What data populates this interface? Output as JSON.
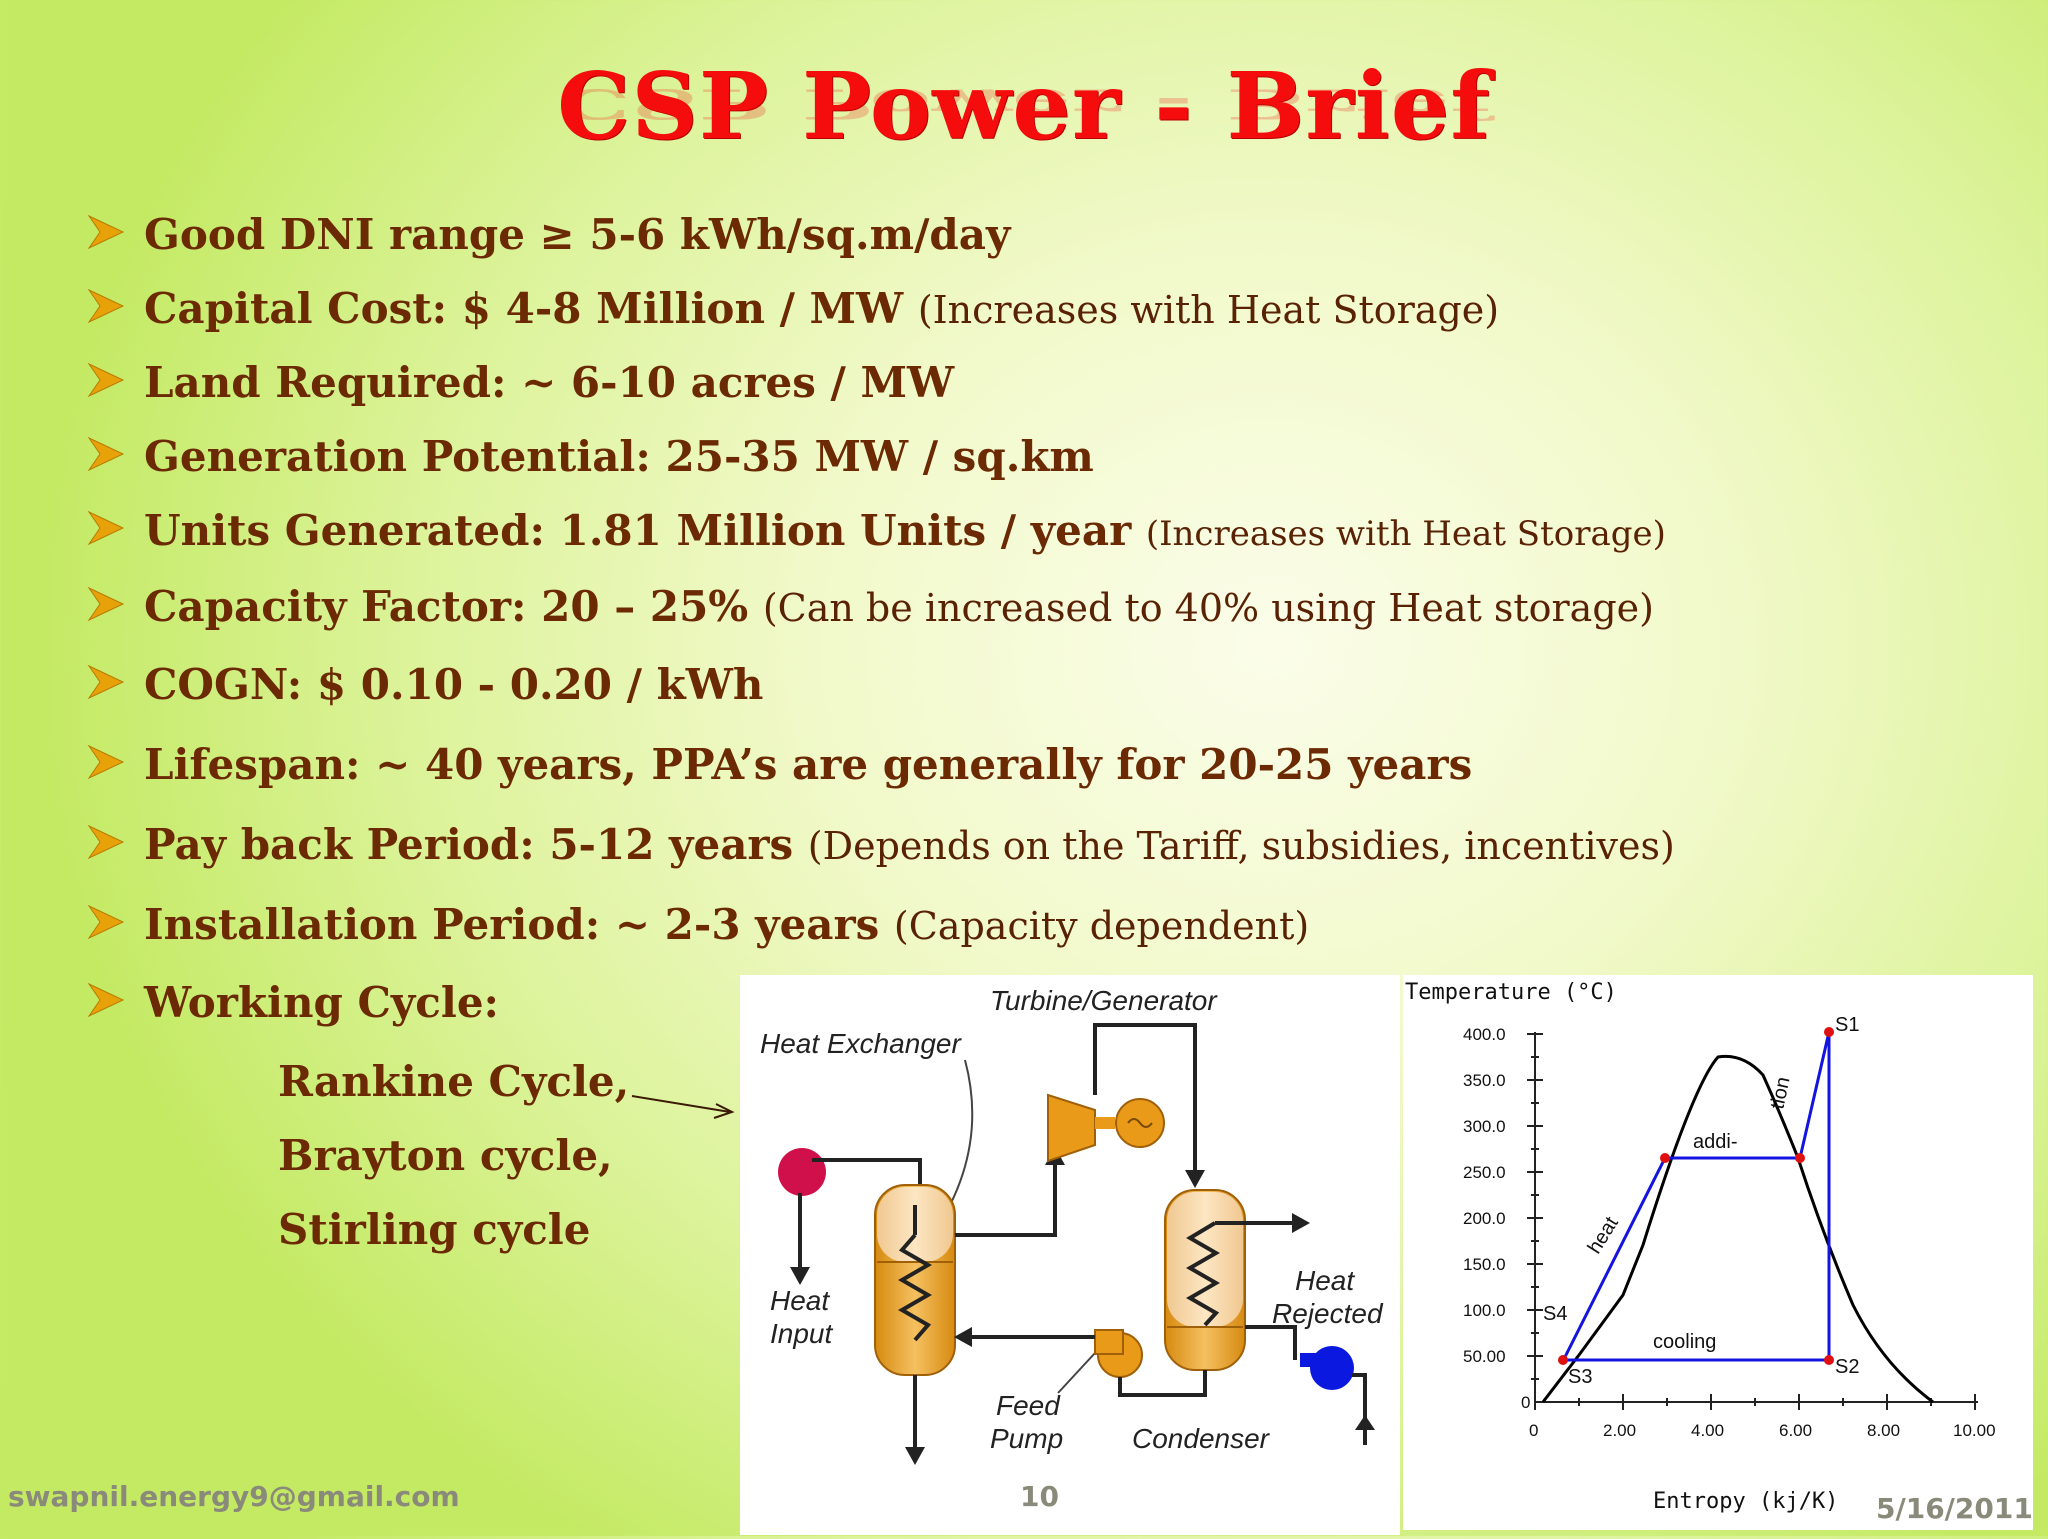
{
  "slide": {
    "title": "CSP Power - Brief",
    "bullets": [
      {
        "bold": "Good DNI range ≥ 5-6 kWh/sq.m/day",
        "note": ""
      },
      {
        "bold": "Capital Cost: $ 4-8 Million / MW ",
        "note": "(Increases with Heat Storage)"
      },
      {
        "bold": "Land Required: ~ 6-10 acres / MW",
        "note": ""
      },
      {
        "bold": "Generation Potential: 25-35 MW / sq.km",
        "note": ""
      },
      {
        "bold": "Units Generated: 1.81 Million Units / year ",
        "note": "(Increases with Heat Storage)"
      },
      {
        "bold": "Capacity Factor: 20 – 25% ",
        "note": "(Can be increased to 40% using Heat storage)"
      },
      {
        "bold": "COGN: $ 0.10 - 0.20 / kWh",
        "note": ""
      },
      {
        "bold": "Lifespan: ~ 40 years, PPA’s are generally for 20-25 years",
        "note": ""
      },
      {
        "bold": "Pay back Period: 5-12 years ",
        "note": "(Depends on the Tariff, subsidies, incentives)"
      },
      {
        "bold": "Installation Period: ~ 2-3 years ",
        "note": "(Capacity dependent)"
      },
      {
        "bold": "Working Cycle:",
        "note": ""
      }
    ],
    "cycles": [
      "Rankine Cycle,",
      "Brayton cycle,",
      "Stirling cycle"
    ]
  },
  "diagram": {
    "turbine_label": "Turbine/Generator",
    "heat_exchanger_label": "Heat Exchanger",
    "heat_input_line1": "Heat",
    "heat_input_line2": "Input",
    "heat_rejected_line1": "Heat",
    "heat_rejected_line2": "Rejected",
    "feed_pump_line1": "Feed",
    "feed_pump_line2": "Pump",
    "condenser_label": "Condenser"
  },
  "ts_plot": {
    "ylabel": "Temperature (°C)",
    "xlabel": "Entropy (kj/K)",
    "y_ticks": [
      "0",
      "50.00",
      "100.0",
      "150.0",
      "200.0",
      "250.0",
      "300.0",
      "350.0",
      "400.0"
    ],
    "x_ticks": [
      "0",
      "2.00",
      "4.00",
      "6.00",
      "8.00",
      "10.00"
    ],
    "points": {
      "S1": "S1",
      "S2": "S2",
      "S3": "S3",
      "S4": "S4"
    },
    "annotations": {
      "addi": "addi-",
      "tion": "tion",
      "heat": "heat",
      "cooling": "cooling"
    },
    "colors": {
      "cycle": "#1414e0",
      "points": "#e01010",
      "dome": "#000000"
    }
  },
  "footer": {
    "email": "swapnil.energy9@gmail.com",
    "page": "10",
    "date": "5/16/2011"
  },
  "colors": {
    "title": "#f50d0d",
    "text": "#6b2a04",
    "arrow": "#e7a20a"
  }
}
